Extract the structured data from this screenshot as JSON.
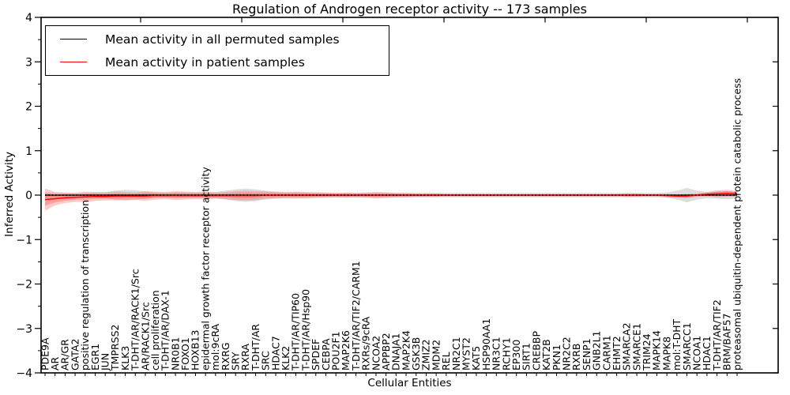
{
  "chart_data": {
    "type": "line",
    "title": "Regulation of Androgen receptor activity -- 173 samples",
    "xlabel": "Cellular Entities",
    "ylabel": "Inferred Activity",
    "ylim": [
      -4,
      4
    ],
    "ytick_step": 1,
    "grid": false,
    "legend_position": "upper left",
    "categories": [
      "PDE9A",
      "AR",
      "AR/GR",
      "GATA2",
      "positive regulation of transcription",
      "EGR1",
      "JUN",
      "TMPRSS2",
      "KLK3",
      "T-DHT/AR/RACK1/Src",
      "AR/RACK1/Src",
      "cell proliferation",
      "T-DHT/AR/DAX-1",
      "NR0B1",
      "FOXO1",
      "HOXB13",
      "epidermal growth factor receptor activity",
      "mol:9cRA",
      "RXRG",
      "SRY",
      "RXRA",
      "T-DHT/AR",
      "SRC",
      "HDAC7",
      "KLK2",
      "T-DHT/AR/TIP60",
      "T-DHT/AR/Hsp90",
      "SPDEF",
      "CEBPA",
      "POU2F1",
      "MAP2K6",
      "T-DHT/AR/TIF2/CARM1",
      "RXRs/9cRA",
      "NCOA2",
      "APPBP2",
      "DNAJA1",
      "MAP2K4",
      "GSK3B",
      "ZMIZ2",
      "MDM2",
      "REL",
      "NR2C1",
      "MYST2",
      "KAT5",
      "HSP90AA1",
      "NR3C1",
      "RCHY1",
      "EP300",
      "SIRT1",
      "CREBBP",
      "KAT2B",
      "PKN1",
      "NR2C2",
      "RXRB",
      "SENP1",
      "GNB2L1",
      "CARM1",
      "EHMT2",
      "SMARCA2",
      "SMARCE1",
      "TRIM24",
      "MAPK14",
      "MAPK8",
      "mol:T-DHT",
      "SMARCC1",
      "NCOA1",
      "HDAC1",
      "T-DHT/AR/TIF2",
      "BRM/BAF57",
      "proteasomal ubiquitin-dependent protein catabolic process"
    ],
    "series": [
      {
        "name": "Mean activity in all permuted samples",
        "color": "#000000",
        "band_color": "#787878",
        "values": [
          0,
          0,
          0,
          0,
          0,
          0,
          0,
          0,
          0,
          0,
          0,
          0,
          0,
          0,
          0,
          0,
          0,
          0,
          0,
          0,
          0,
          0,
          0,
          0,
          0,
          0,
          0,
          0,
          0,
          0,
          0,
          0,
          0,
          0,
          0,
          0,
          0,
          0,
          0,
          0,
          0,
          0,
          0,
          0,
          0,
          0,
          0,
          0,
          0,
          0,
          0,
          0,
          0,
          0,
          0,
          0,
          0,
          0,
          0,
          0,
          0,
          0,
          0,
          0,
          0,
          0,
          0,
          0,
          0,
          0
        ],
        "band": [
          0.06,
          0.05,
          0.05,
          0.05,
          0.05,
          0.06,
          0.07,
          0.1,
          0.12,
          0.11,
          0.08,
          0.06,
          0.06,
          0.06,
          0.06,
          0.06,
          0.06,
          0.07,
          0.1,
          0.13,
          0.15,
          0.13,
          0.1,
          0.07,
          0.06,
          0.06,
          0.06,
          0.06,
          0.05,
          0.05,
          0.05,
          0.05,
          0.05,
          0.06,
          0.06,
          0.05,
          0.05,
          0.05,
          0.05,
          0.05,
          0.05,
          0.05,
          0.05,
          0.05,
          0.05,
          0.05,
          0.05,
          0.05,
          0.05,
          0.05,
          0.05,
          0.05,
          0.05,
          0.05,
          0.05,
          0.05,
          0.05,
          0.05,
          0.05,
          0.05,
          0.05,
          0.05,
          0.06,
          0.1,
          0.16,
          0.1,
          0.07,
          0.08,
          0.09,
          0.08
        ]
      },
      {
        "name": "Mean activity in patient samples",
        "color": "#ff0000",
        "band_color": "#ff4040",
        "values": [
          -0.1,
          -0.08,
          -0.06,
          -0.05,
          -0.04,
          -0.03,
          -0.03,
          -0.02,
          -0.02,
          -0.02,
          -0.02,
          -0.01,
          -0.01,
          -0.01,
          -0.01,
          -0.01,
          -0.01,
          -0.01,
          -0.01,
          -0.01,
          -0.01,
          -0.01,
          0,
          0,
          0,
          0,
          0,
          0,
          0,
          0,
          0,
          0,
          0,
          0,
          0,
          0,
          0,
          0,
          0,
          0,
          0,
          0,
          0,
          0,
          0,
          0,
          0,
          0,
          0,
          0,
          0,
          0,
          0,
          0,
          0,
          0,
          0,
          0,
          0,
          0,
          0,
          0,
          -0.01,
          -0.02,
          -0.02,
          0,
          0.02,
          0.03,
          0.04,
          0.03
        ],
        "band": [
          0.25,
          0.15,
          0.12,
          0.1,
          0.12,
          0.1,
          0.09,
          0.1,
          0.09,
          0.08,
          0.11,
          0.09,
          0.08,
          0.1,
          0.09,
          0.08,
          0.09,
          0.07,
          0.08,
          0.1,
          0.11,
          0.1,
          0.08,
          0.08,
          0.07,
          0.08,
          0.07,
          0.06,
          0.06,
          0.05,
          0.06,
          0.05,
          0.06,
          0.07,
          0.06,
          0.05,
          0.05,
          0.04,
          0.04,
          0.04,
          0.03,
          0.03,
          0.03,
          0.03,
          0.03,
          0.03,
          0.03,
          0.03,
          0.03,
          0.03,
          0.03,
          0.03,
          0.03,
          0.03,
          0.03,
          0.03,
          0.03,
          0.03,
          0.04,
          0.04,
          0.03,
          0.03,
          0.04,
          0.04,
          0.05,
          0.04,
          0.05,
          0.08,
          0.08,
          0.06
        ]
      }
    ]
  }
}
